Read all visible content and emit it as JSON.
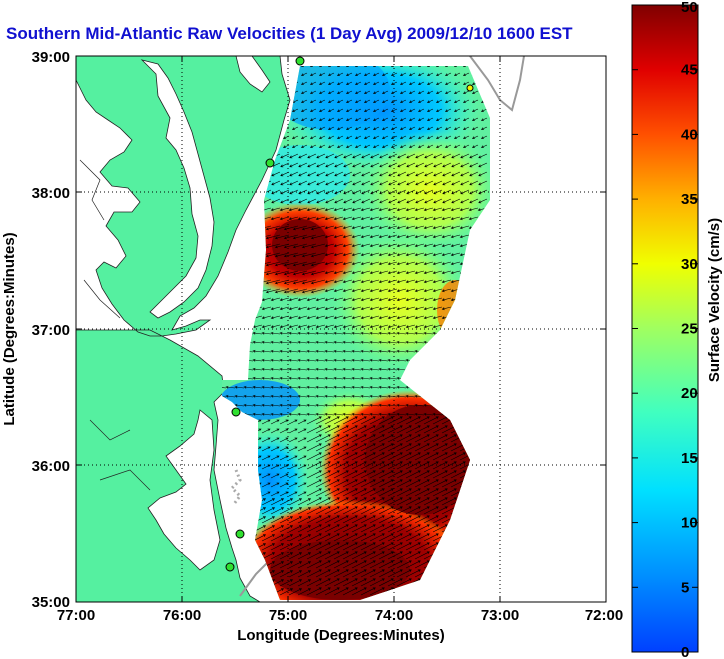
{
  "title": "Southern Mid-Atlantic Raw Velocities (1 Day Avg) 2009/12/10 1600 EST",
  "map": {
    "xlabel": "Longitude (Degrees:Minutes)",
    "ylabel": "Latitude (Degrees:Minutes)",
    "x_ticks": [
      "77:00",
      "76:00",
      "75:00",
      "74:00",
      "73:00",
      "72:00"
    ],
    "y_ticks": [
      "39:00",
      "38:00",
      "37:00",
      "36:00",
      "35:00"
    ],
    "x_range_deg": [
      -77,
      -72
    ],
    "y_range_deg": [
      35,
      39
    ],
    "land_color": "#55f0a0",
    "water_color": "#ffffff",
    "grid": "dotted"
  },
  "colorbar": {
    "label": "Surface Velocity (cm/s)",
    "ticks": [
      "0",
      "5",
      "10",
      "15",
      "20",
      "25",
      "30",
      "35",
      "40",
      "45",
      "50"
    ],
    "range": [
      0,
      50
    ],
    "colormap": "jet"
  },
  "chart_data": {
    "type": "heatmap",
    "title": "Southern Mid-Atlantic Raw Velocities (1 Day Avg) 2009/12/10 1600 EST",
    "xlabel": "Longitude (Degrees:Minutes)",
    "ylabel": "Latitude (Degrees:Minutes)",
    "xlim": [
      -77,
      -72
    ],
    "ylim": [
      35,
      39
    ],
    "color_label": "Surface Velocity (cm/s)",
    "color_range": [
      0,
      50
    ],
    "regions": [
      {
        "lon": -74.6,
        "lat": 38.7,
        "speed": 8
      },
      {
        "lon": -73.8,
        "lat": 38.0,
        "speed": 22
      },
      {
        "lon": -75.0,
        "lat": 37.5,
        "speed": 48
      },
      {
        "lon": -74.2,
        "lat": 37.3,
        "speed": 24
      },
      {
        "lon": -74.8,
        "lat": 36.8,
        "speed": 20
      },
      {
        "lon": -75.2,
        "lat": 36.1,
        "speed": 12
      },
      {
        "lon": -74.0,
        "lat": 36.0,
        "speed": 47
      },
      {
        "lon": -74.5,
        "lat": 35.4,
        "speed": 50
      }
    ]
  }
}
